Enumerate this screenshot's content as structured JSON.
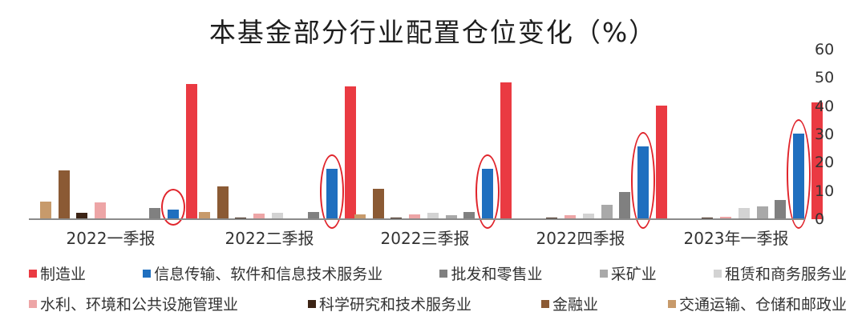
{
  "title": "本基金部分行业配置仓位变化（%）",
  "chart_data": {
    "type": "bar",
    "title": "本基金部分行业配置仓位变化（%）",
    "xlabel": "",
    "ylabel": "%",
    "ylim": [
      0,
      60
    ],
    "yticks": [
      0,
      10,
      20,
      30,
      40,
      50,
      60
    ],
    "y_axis_position": "right",
    "grid": false,
    "legend_position": "bottom",
    "categories": [
      "2022一季报",
      "2022二季报",
      "2022三季报",
      "2022四季报",
      "2023年一季报"
    ],
    "series": [
      {
        "name": "交通运输、仓储和邮政业",
        "color": "#c79a6b",
        "values": [
          6.2,
          2.5,
          1.6,
          0.0,
          0.0
        ]
      },
      {
        "name": "金融业",
        "color": "#8b5a34",
        "values": [
          17.3,
          11.7,
          10.9,
          0.0,
          0.0
        ]
      },
      {
        "name": "科学研究和技术服务业",
        "color": "#3c2415",
        "values": [
          2.3,
          0.5,
          0.5,
          0.6,
          0.7
        ]
      },
      {
        "name": "水利、环境和公共设施管理业",
        "color": "#eda5a6",
        "values": [
          6.0,
          1.9,
          1.6,
          1.4,
          0.8
        ]
      },
      {
        "name": "租赁和商务服务业",
        "color": "#d3d3d3",
        "values": [
          0.0,
          2.2,
          2.2,
          2.1,
          4.0
        ]
      },
      {
        "name": "采矿业",
        "color": "#a9a9a9",
        "values": [
          0.0,
          0.0,
          1.4,
          5.1,
          4.6
        ]
      },
      {
        "name": "批发和零售业",
        "color": "#808080",
        "values": [
          4.0,
          2.5,
          2.5,
          9.6,
          6.9
        ]
      },
      {
        "name": "信息传输、软件和信息技术服务业",
        "color": "#1f6fbf",
        "values": [
          3.3,
          17.9,
          17.9,
          25.7,
          30.2
        ]
      },
      {
        "name": "制造业",
        "color": "#ea3a42",
        "values": [
          47.7,
          47.1,
          48.3,
          40.3,
          41.4
        ]
      }
    ],
    "annotations": [
      "red ellipse highlighting 信息传输、软件和信息技术服务业 bar in each period"
    ]
  },
  "legend": {
    "row1": [
      {
        "label": "制造业",
        "color": "#ea3a42"
      },
      {
        "label": "信息传输、软件和信息技术服务业",
        "color": "#1f6fbf"
      },
      {
        "label": "批发和零售业",
        "color": "#808080"
      },
      {
        "label": "采矿业",
        "color": "#a9a9a9"
      },
      {
        "label": "租赁和商务服务业",
        "color": "#d3d3d3"
      }
    ],
    "row2": [
      {
        "label": "水利、环境和公共设施管理业",
        "color": "#eda5a6"
      },
      {
        "label": "科学研究和技术服务业",
        "color": "#3c2415"
      },
      {
        "label": "金融业",
        "color": "#8b5a34"
      },
      {
        "label": "交通运输、仓储和邮政业",
        "color": "#c79a6b"
      }
    ]
  }
}
